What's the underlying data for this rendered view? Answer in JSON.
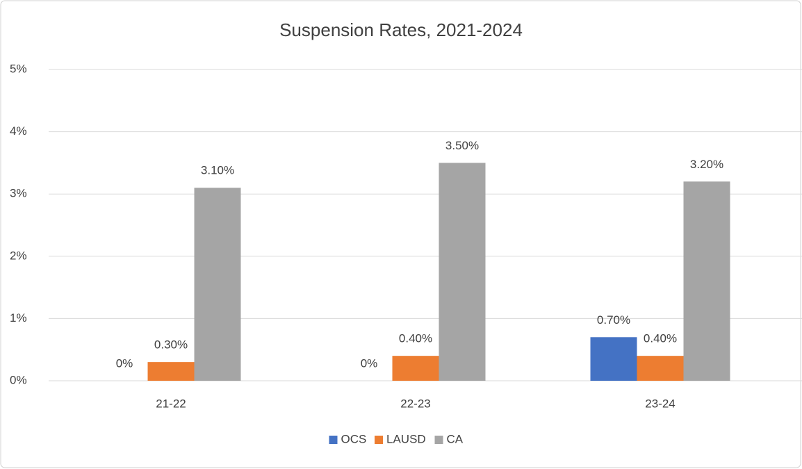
{
  "chart_data": {
    "type": "bar",
    "title": "Suspension Rates, 2021-2024",
    "categories": [
      "21-22",
      "22-23",
      "23-24"
    ],
    "series": [
      {
        "name": "OCS",
        "color": "#4472c4",
        "values": [
          0,
          0,
          0.7
        ],
        "value_labels": [
          "0%",
          "0%",
          "0.70%"
        ]
      },
      {
        "name": "LAUSD",
        "color": "#ed7d31",
        "values": [
          0.3,
          0.4,
          0.4
        ],
        "value_labels": [
          "0.30%",
          "0.40%",
          "0.40%"
        ]
      },
      {
        "name": "CA",
        "color": "#a5a5a5",
        "values": [
          3.1,
          3.5,
          3.2
        ],
        "value_labels": [
          "3.10%",
          "3.50%",
          "3.20%"
        ]
      }
    ],
    "ylim": [
      0,
      5
    ],
    "yticks": [
      {
        "value": 0,
        "label": "0%"
      },
      {
        "value": 1,
        "label": "1%"
      },
      {
        "value": 2,
        "label": "2%"
      },
      {
        "value": 3,
        "label": "3%"
      },
      {
        "value": 4,
        "label": "4%"
      },
      {
        "value": 5,
        "label": "5%"
      }
    ],
    "grid": true,
    "legend": "bottom"
  }
}
